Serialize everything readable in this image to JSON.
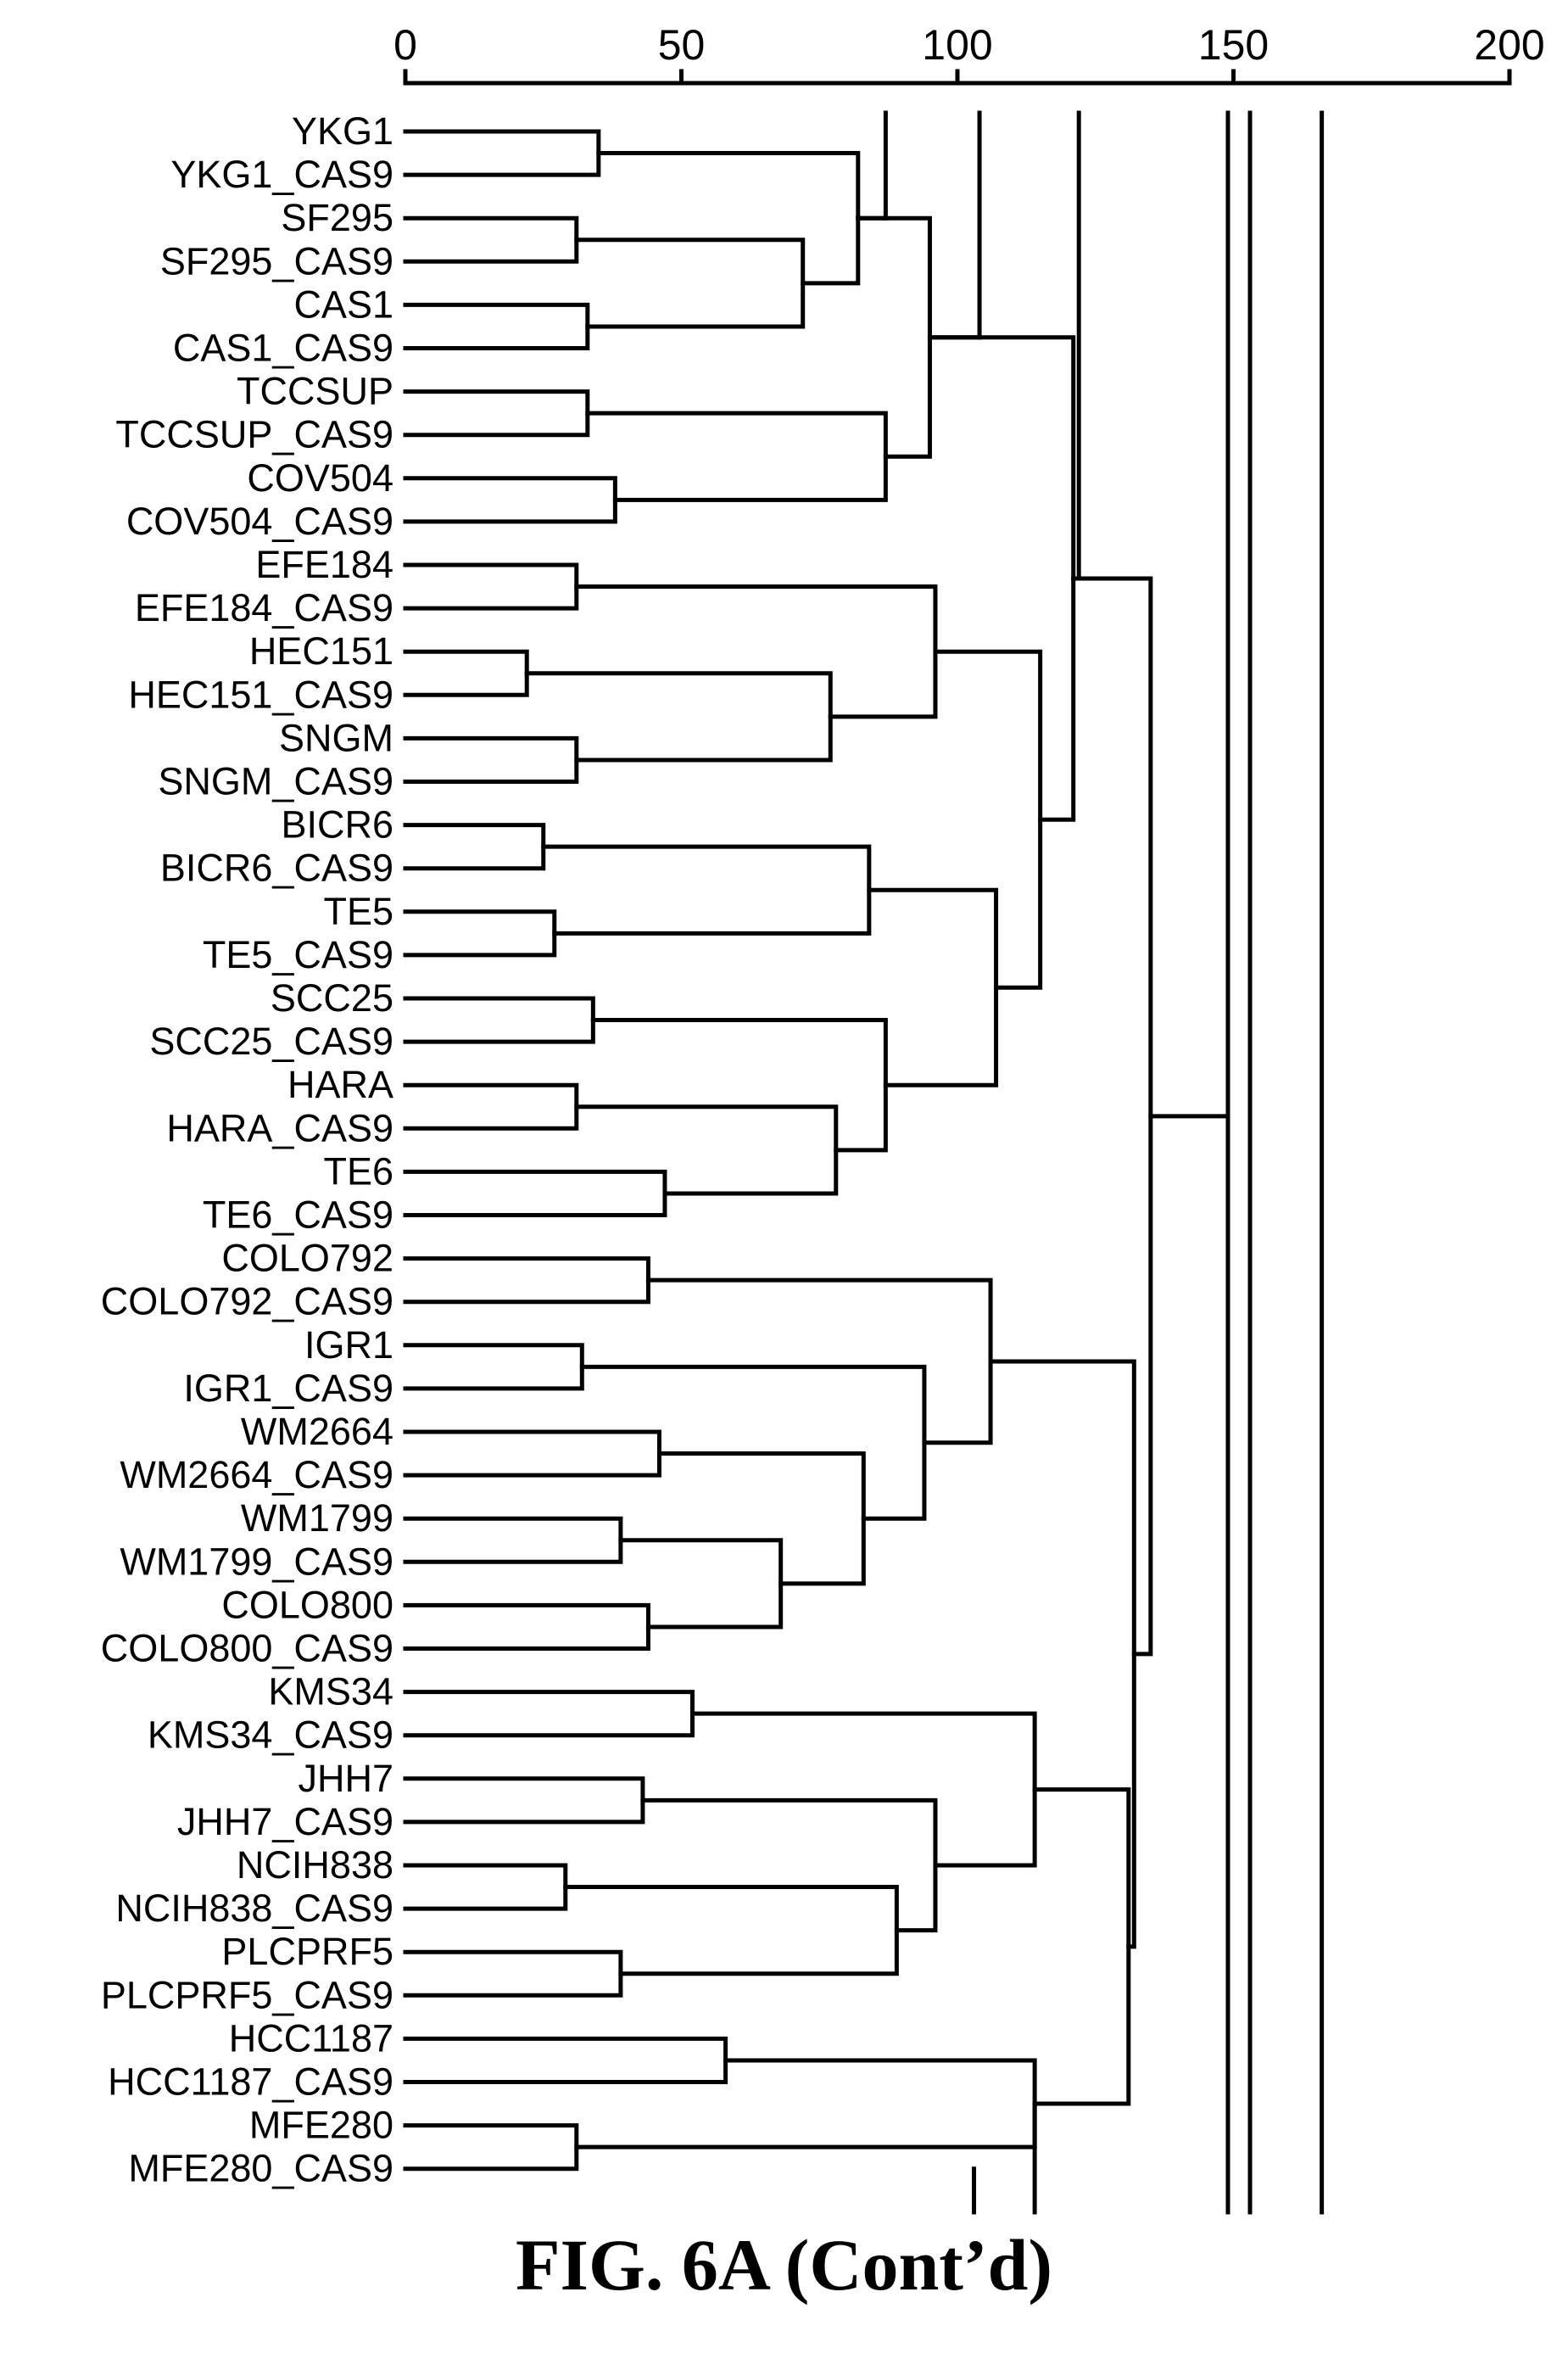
{
  "caption": "FIG. 6A (Cont’d)",
  "chart_data": {
    "type": "dendrogram",
    "xlim": [
      0,
      200
    ],
    "ticks": [
      0,
      50,
      100,
      150,
      200
    ],
    "tick_labels": [
      "0",
      "50",
      "100",
      "150",
      "200"
    ],
    "leaves": [
      "YKG1",
      "YKG1_CAS9",
      "SF295",
      "SF295_CAS9",
      "CAS1",
      "CAS1_CAS9",
      "TCCSUP",
      "TCCSUP_CAS9",
      "COV504",
      "COV504_CAS9",
      "EFE184",
      "EFE184_CAS9",
      "HEC151",
      "HEC151_CAS9",
      "SNGM",
      "SNGM_CAS9",
      "BICR6",
      "BICR6_CAS9",
      "TE5",
      "TE5_CAS9",
      "SCC25",
      "SCC25_CAS9",
      "HARA",
      "HARA_CAS9",
      "TE6",
      "TE6_CAS9",
      "COLO792",
      "COLO792_CAS9",
      "IGR1",
      "IGR1_CAS9",
      "WM2664",
      "WM2664_CAS9",
      "WM1799",
      "WM1799_CAS9",
      "COLO800",
      "COLO800_CAS9",
      "KMS34",
      "KMS34_CAS9",
      "JHH7",
      "JHH7_CAS9",
      "NCIH838",
      "NCIH838_CAS9",
      "PLCPRF5",
      "PLCPRF5_CAS9",
      "HCC1187",
      "HCC1187_CAS9",
      "MFE280",
      "MFE280_CAS9"
    ],
    "merges": [
      {
        "id": "m1",
        "children": [
          0,
          1
        ],
        "height": 35
      },
      {
        "id": "m2",
        "children": [
          2,
          3
        ],
        "height": 31
      },
      {
        "id": "m3",
        "children": [
          4,
          5
        ],
        "height": 33
      },
      {
        "id": "m4",
        "children": [
          "m2",
          "m3"
        ],
        "height": 72
      },
      {
        "id": "m5",
        "children": [
          "m1",
          "m4"
        ],
        "height": 82
      },
      {
        "id": "m6",
        "children": [
          6,
          7
        ],
        "height": 33
      },
      {
        "id": "m7",
        "children": [
          8,
          9
        ],
        "height": 38
      },
      {
        "id": "m8",
        "children": [
          "m6",
          "m7"
        ],
        "height": 87
      },
      {
        "id": "m9",
        "children": [
          "m5",
          "m8"
        ],
        "height": 95
      },
      {
        "id": "m10",
        "children": [
          10,
          11
        ],
        "height": 31
      },
      {
        "id": "m11",
        "children": [
          12,
          13
        ],
        "height": 22
      },
      {
        "id": "m12",
        "children": [
          14,
          15
        ],
        "height": 31
      },
      {
        "id": "m13",
        "children": [
          "m11",
          "m12"
        ],
        "height": 77
      },
      {
        "id": "m14",
        "children": [
          "m10",
          "m13"
        ],
        "height": 96
      },
      {
        "id": "m15",
        "children": [
          16,
          17
        ],
        "height": 25
      },
      {
        "id": "m16",
        "children": [
          18,
          19
        ],
        "height": 27
      },
      {
        "id": "m17",
        "children": [
          "m15",
          "m16"
        ],
        "height": 84
      },
      {
        "id": "m18",
        "children": [
          20,
          21
        ],
        "height": 34
      },
      {
        "id": "m19",
        "children": [
          22,
          23
        ],
        "height": 31
      },
      {
        "id": "m20",
        "children": [
          24,
          25
        ],
        "height": 47
      },
      {
        "id": "m21",
        "children": [
          "m19",
          "m20"
        ],
        "height": 78
      },
      {
        "id": "m22",
        "children": [
          "m18",
          "m21"
        ],
        "height": 87
      },
      {
        "id": "m23",
        "children": [
          "m17",
          "m22"
        ],
        "height": 107
      },
      {
        "id": "m24",
        "children": [
          "m14",
          "m23"
        ],
        "height": 115
      },
      {
        "id": "m25",
        "children": [
          "m9",
          "m24"
        ],
        "height": 121
      },
      {
        "id": "m26",
        "children": [
          26,
          27
        ],
        "height": 44
      },
      {
        "id": "m27",
        "children": [
          28,
          29
        ],
        "height": 32
      },
      {
        "id": "m28",
        "children": [
          30,
          31
        ],
        "height": 46
      },
      {
        "id": "m29",
        "children": [
          32,
          33
        ],
        "height": 39
      },
      {
        "id": "m30",
        "children": [
          34,
          35
        ],
        "height": 44
      },
      {
        "id": "m31",
        "children": [
          "m29",
          "m30"
        ],
        "height": 68
      },
      {
        "id": "m32",
        "children": [
          "m28",
          "m31"
        ],
        "height": 83
      },
      {
        "id": "m33",
        "children": [
          "m27",
          "m32"
        ],
        "height": 94
      },
      {
        "id": "m34",
        "children": [
          "m26",
          "m33"
        ],
        "height": 106
      },
      {
        "id": "m35",
        "children": [
          36,
          37
        ],
        "height": 52
      },
      {
        "id": "m36",
        "children": [
          38,
          39
        ],
        "height": 43
      },
      {
        "id": "m37",
        "children": [
          40,
          41
        ],
        "height": 29
      },
      {
        "id": "m38",
        "children": [
          42,
          43
        ],
        "height": 39
      },
      {
        "id": "m39",
        "children": [
          "m37",
          "m38"
        ],
        "height": 89
      },
      {
        "id": "m40",
        "children": [
          "m36",
          "m39"
        ],
        "height": 96
      },
      {
        "id": "m41",
        "children": [
          "m35",
          "m40"
        ],
        "height": 114
      },
      {
        "id": "m42",
        "children": [
          44,
          45
        ],
        "height": 58
      },
      {
        "id": "m43",
        "children": [
          46,
          47
        ],
        "height": 31
      },
      {
        "id": "m44",
        "children": [
          "m42",
          "m43"
        ],
        "height": 114
      },
      {
        "id": "m45",
        "children": [
          "m41",
          "m44"
        ],
        "height": 131
      },
      {
        "id": "m46",
        "children": [
          "m34",
          "m45"
        ],
        "height": 132
      },
      {
        "id": "m47",
        "children": [
          "m25",
          "m46"
        ],
        "height": 135
      }
    ],
    "continuation_lines": [
      {
        "node": "m5",
        "height": 87
      },
      {
        "node": "m9",
        "height": 104
      },
      {
        "node": "m25",
        "height": 122
      },
      {
        "node": "m47",
        "height": 149
      },
      {
        "node": "m47",
        "height": 153
      },
      {
        "node": "m47",
        "height": 166
      }
    ],
    "bottom_stubs": [
      103,
      114
    ]
  }
}
